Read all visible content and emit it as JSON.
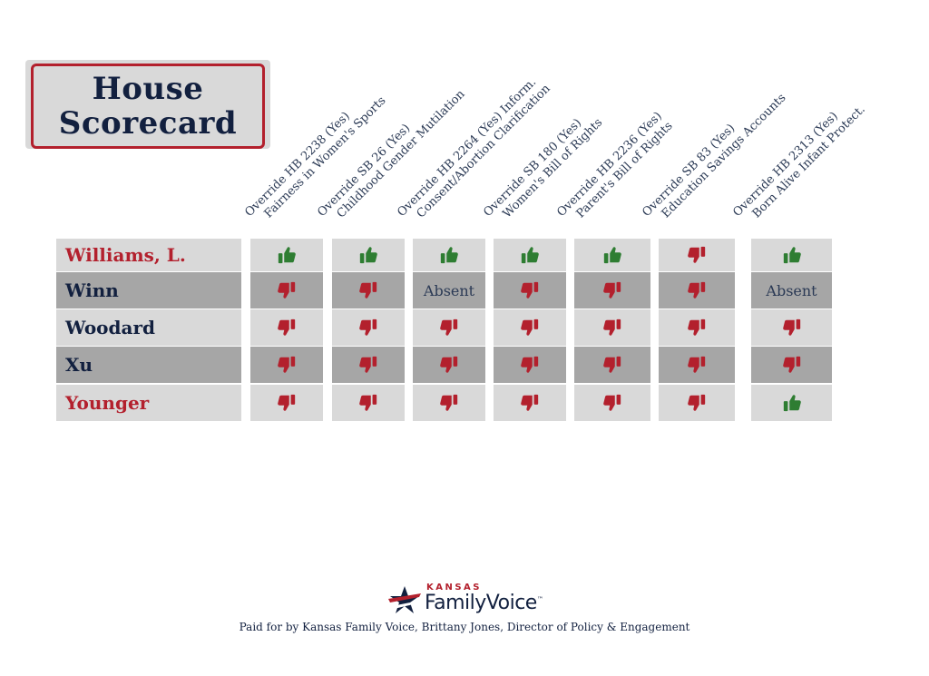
{
  "title": {
    "line1": "House",
    "line2": "Scorecard"
  },
  "colors": {
    "republican": "#b3202d",
    "democrat": "#12203f",
    "row_light": "#d9d9d9",
    "row_dark": "#a6a6a6",
    "thumb_up": "#2e7d32",
    "thumb_down": "#b3202d"
  },
  "columns": [
    {
      "line1": "Override HB 2238 (Yes)",
      "line2": "Fairness in Women's Sports"
    },
    {
      "line1": "Override SB 26 (Yes)",
      "line2": "Childhood Gender Mutilation"
    },
    {
      "line1": "Override HB 2264 (Yes) Inform.",
      "line2": "Consent/Abortion Clarification"
    },
    {
      "line1": "Override SB 180 (Yes)",
      "line2": "Women's Bill of Rights"
    },
    {
      "line1": "Override HB 2236 (Yes)",
      "line2": "Parent's Bill of Rights"
    },
    {
      "line1": "Override SB 83 (Yes)",
      "line2": "Education Savings Accounts"
    },
    {
      "line1": "Override HB 2313 (Yes)",
      "line2": "Born Alive Infant Protect."
    }
  ],
  "absent_label": "Absent",
  "rows": [
    {
      "name": "Williams, L.",
      "party": "republican",
      "votes": [
        "up",
        "up",
        "up",
        "up",
        "up",
        "down",
        "up"
      ]
    },
    {
      "name": "Winn",
      "party": "democrat",
      "votes": [
        "down",
        "down",
        "absent",
        "down",
        "down",
        "down",
        "absent"
      ]
    },
    {
      "name": "Woodard",
      "party": "democrat",
      "votes": [
        "down",
        "down",
        "down",
        "down",
        "down",
        "down",
        "down"
      ]
    },
    {
      "name": "Xu",
      "party": "democrat",
      "votes": [
        "down",
        "down",
        "down",
        "down",
        "down",
        "down",
        "down"
      ]
    },
    {
      "name": "Younger",
      "party": "republican",
      "votes": [
        "down",
        "down",
        "down",
        "down",
        "down",
        "down",
        "up"
      ]
    }
  ],
  "footer": {
    "logo_small": "KANSAS",
    "logo_main": "FamilyVoice",
    "logo_tm": "™",
    "paid_for": "Paid for by Kansas Family Voice, Brittany Jones, Director of Policy & Engagement"
  }
}
